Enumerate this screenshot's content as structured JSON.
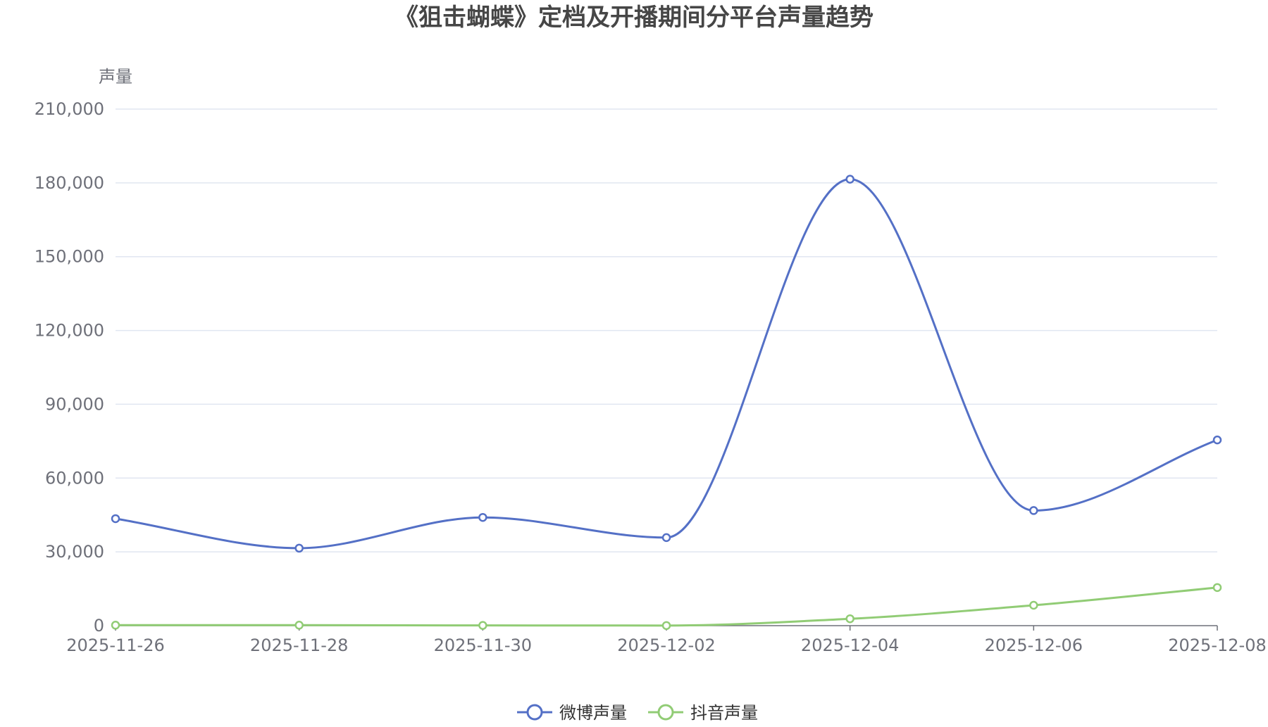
{
  "chart_data": {
    "type": "line",
    "title": "《狙击蝴蝶》定档及开播期间分平台声量趋势",
    "xlabel": "",
    "ylabel": "声量",
    "x": [
      "2025-11-26",
      "2025-11-28",
      "2025-11-30",
      "2025-12-02",
      "2025-12-04",
      "2025-12-06",
      "2025-12-08"
    ],
    "ylim": [
      0,
      210000
    ],
    "yticks": [
      0,
      30000,
      60000,
      90000,
      120000,
      150000,
      180000,
      210000
    ],
    "ytick_labels": [
      "0",
      "30,000",
      "60,000",
      "90,000",
      "120,000",
      "150,000",
      "180,000",
      "210,000"
    ],
    "grid": true,
    "legend_position": "bottom-center",
    "smooth": true,
    "series": [
      {
        "name": "微博声量",
        "color": "#5470c6",
        "values": [
          43500,
          31500,
          44000,
          35800,
          181500,
          46800,
          75500
        ]
      },
      {
        "name": "抖音声量",
        "color": "#91cc75",
        "values": [
          200,
          200,
          100,
          50,
          2800,
          8300,
          15500
        ]
      }
    ]
  }
}
